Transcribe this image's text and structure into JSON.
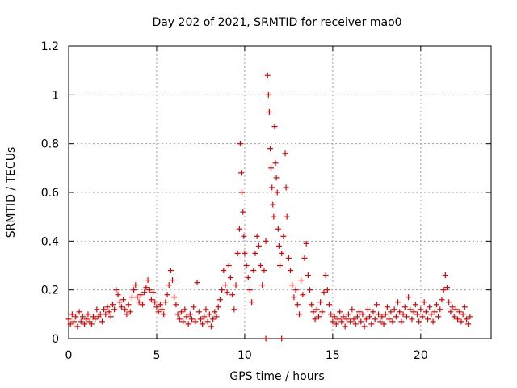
{
  "chart_data": {
    "type": "scatter",
    "title": "Day 202 of 2021, SRMTID for receiver mao0",
    "xlabel": "GPS time / hours",
    "ylabel": "SRMTID / TECUs",
    "xlim": [
      0,
      24
    ],
    "ylim": [
      0,
      1.2
    ],
    "xticks": [
      0,
      5,
      10,
      15,
      20
    ],
    "yticks": [
      0,
      0.2,
      0.4,
      0.6,
      0.8,
      1,
      1.2
    ],
    "xtick_labels": [
      "0",
      "5",
      "10",
      "15",
      "20"
    ],
    "ytick_labels": [
      "0",
      "0.2",
      "0.4",
      "0.6",
      "0.8",
      "1",
      "1.2"
    ],
    "grid": true,
    "marker": "+",
    "color": "#e00000",
    "series": [
      {
        "name": "SRMTID",
        "points": [
          [
            0.0,
            0.08
          ],
          [
            0.1,
            0.06
          ],
          [
            0.2,
            0.1
          ],
          [
            0.3,
            0.07
          ],
          [
            0.4,
            0.09
          ],
          [
            0.5,
            0.05
          ],
          [
            0.6,
            0.11
          ],
          [
            0.7,
            0.07
          ],
          [
            0.8,
            0.09
          ],
          [
            0.9,
            0.06
          ],
          [
            1.0,
            0.08
          ],
          [
            1.1,
            0.1
          ],
          [
            1.2,
            0.07
          ],
          [
            1.3,
            0.06
          ],
          [
            1.4,
            0.09
          ],
          [
            1.5,
            0.08
          ],
          [
            1.6,
            0.12
          ],
          [
            1.7,
            0.09
          ],
          [
            1.8,
            0.1
          ],
          [
            1.9,
            0.07
          ],
          [
            2.0,
            0.12
          ],
          [
            2.1,
            0.1
          ],
          [
            2.2,
            0.13
          ],
          [
            2.3,
            0.11
          ],
          [
            2.4,
            0.09
          ],
          [
            2.5,
            0.14
          ],
          [
            2.6,
            0.12
          ],
          [
            2.7,
            0.2
          ],
          [
            2.8,
            0.18
          ],
          [
            2.9,
            0.15
          ],
          [
            3.0,
            0.13
          ],
          [
            3.1,
            0.16
          ],
          [
            3.2,
            0.12
          ],
          [
            3.3,
            0.1
          ],
          [
            3.4,
            0.14
          ],
          [
            3.5,
            0.11
          ],
          [
            3.6,
            0.17
          ],
          [
            3.7,
            0.2
          ],
          [
            3.8,
            0.22
          ],
          [
            3.9,
            0.17
          ],
          [
            4.0,
            0.15
          ],
          [
            4.1,
            0.18
          ],
          [
            4.2,
            0.14
          ],
          [
            4.3,
            0.19
          ],
          [
            4.4,
            0.21
          ],
          [
            4.5,
            0.24
          ],
          [
            4.6,
            0.2
          ],
          [
            4.7,
            0.16
          ],
          [
            4.8,
            0.19
          ],
          [
            4.9,
            0.15
          ],
          [
            5.0,
            0.13
          ],
          [
            5.1,
            0.11
          ],
          [
            5.2,
            0.14
          ],
          [
            5.3,
            0.12
          ],
          [
            5.4,
            0.1
          ],
          [
            5.5,
            0.15
          ],
          [
            5.6,
            0.18
          ],
          [
            5.7,
            0.22
          ],
          [
            5.8,
            0.28
          ],
          [
            5.9,
            0.24
          ],
          [
            6.0,
            0.17
          ],
          [
            6.1,
            0.14
          ],
          [
            6.2,
            0.1
          ],
          [
            6.3,
            0.08
          ],
          [
            6.4,
            0.11
          ],
          [
            6.5,
            0.07
          ],
          [
            6.6,
            0.12
          ],
          [
            6.7,
            0.09
          ],
          [
            6.8,
            0.06
          ],
          [
            6.9,
            0.1
          ],
          [
            7.0,
            0.08
          ],
          [
            7.1,
            0.13
          ],
          [
            7.2,
            0.07
          ],
          [
            7.3,
            0.23
          ],
          [
            7.4,
            0.11
          ],
          [
            7.5,
            0.08
          ],
          [
            7.6,
            0.06
          ],
          [
            7.7,
            0.09
          ],
          [
            7.8,
            0.12
          ],
          [
            7.9,
            0.07
          ],
          [
            8.0,
            0.1
          ],
          [
            8.1,
            0.05
          ],
          [
            8.2,
            0.08
          ],
          [
            8.3,
            0.11
          ],
          [
            8.4,
            0.09
          ],
          [
            8.5,
            0.13
          ],
          [
            8.6,
            0.16
          ],
          [
            8.7,
            0.2
          ],
          [
            8.8,
            0.28
          ],
          [
            8.9,
            0.22
          ],
          [
            9.0,
            0.19
          ],
          [
            9.1,
            0.3
          ],
          [
            9.2,
            0.25
          ],
          [
            9.3,
            0.18
          ],
          [
            9.4,
            0.12
          ],
          [
            9.5,
            0.22
          ],
          [
            9.6,
            0.35
          ],
          [
            9.7,
            0.45
          ],
          [
            9.75,
            0.8
          ],
          [
            9.8,
            0.68
          ],
          [
            9.85,
            0.6
          ],
          [
            9.9,
            0.52
          ],
          [
            9.95,
            0.42
          ],
          [
            10.0,
            0.35
          ],
          [
            10.1,
            0.3
          ],
          [
            10.2,
            0.25
          ],
          [
            10.3,
            0.2
          ],
          [
            10.4,
            0.15
          ],
          [
            10.5,
            0.28
          ],
          [
            10.6,
            0.35
          ],
          [
            10.7,
            0.42
          ],
          [
            10.8,
            0.38
          ],
          [
            10.9,
            0.3
          ],
          [
            11.0,
            0.22
          ],
          [
            11.1,
            0.28
          ],
          [
            11.2,
            0.4
          ],
          [
            11.3,
            1.08
          ],
          [
            11.35,
            1.0
          ],
          [
            11.4,
            0.93
          ],
          [
            11.45,
            0.78
          ],
          [
            11.5,
            0.7
          ],
          [
            11.55,
            0.62
          ],
          [
            11.6,
            0.55
          ],
          [
            11.65,
            0.5
          ],
          [
            11.7,
            0.87
          ],
          [
            11.75,
            0.72
          ],
          [
            11.8,
            0.66
          ],
          [
            11.85,
            0.6
          ],
          [
            11.9,
            0.45
          ],
          [
            11.95,
            0.38
          ],
          [
            12.0,
            0.3
          ],
          [
            12.1,
            0.35
          ],
          [
            12.2,
            0.42
          ],
          [
            12.3,
            0.76
          ],
          [
            12.35,
            0.62
          ],
          [
            12.4,
            0.5
          ],
          [
            12.5,
            0.33
          ],
          [
            12.6,
            0.28
          ],
          [
            12.7,
            0.22
          ],
          [
            12.8,
            0.17
          ],
          [
            12.9,
            0.2
          ],
          [
            13.0,
            0.14
          ],
          [
            13.1,
            0.1
          ],
          [
            13.2,
            0.24
          ],
          [
            13.3,
            0.18
          ],
          [
            13.4,
            0.33
          ],
          [
            13.5,
            0.39
          ],
          [
            13.6,
            0.26
          ],
          [
            13.7,
            0.2
          ],
          [
            13.8,
            0.14
          ],
          [
            13.9,
            0.11
          ],
          [
            14.0,
            0.08
          ],
          [
            14.1,
            0.12
          ],
          [
            14.2,
            0.09
          ],
          [
            14.3,
            0.15
          ],
          [
            14.4,
            0.11
          ],
          [
            14.5,
            0.19
          ],
          [
            14.6,
            0.26
          ],
          [
            14.7,
            0.2
          ],
          [
            14.8,
            0.14
          ],
          [
            14.9,
            0.1
          ],
          [
            15.0,
            0.07
          ],
          [
            15.1,
            0.09
          ],
          [
            15.2,
            0.06
          ],
          [
            15.3,
            0.08
          ],
          [
            15.4,
            0.11
          ],
          [
            15.5,
            0.07
          ],
          [
            15.6,
            0.09
          ],
          [
            15.7,
            0.05
          ],
          [
            15.8,
            0.08
          ],
          [
            15.9,
            0.1
          ],
          [
            16.0,
            0.07
          ],
          [
            16.1,
            0.12
          ],
          [
            16.2,
            0.08
          ],
          [
            16.3,
            0.06
          ],
          [
            16.4,
            0.09
          ],
          [
            16.5,
            0.11
          ],
          [
            16.6,
            0.07
          ],
          [
            16.7,
            0.1
          ],
          [
            16.8,
            0.05
          ],
          [
            16.9,
            0.08
          ],
          [
            17.0,
            0.12
          ],
          [
            17.1,
            0.09
          ],
          [
            17.2,
            0.06
          ],
          [
            17.3,
            0.11
          ],
          [
            17.4,
            0.08
          ],
          [
            17.5,
            0.14
          ],
          [
            17.6,
            0.1
          ],
          [
            17.7,
            0.07
          ],
          [
            17.8,
            0.09
          ],
          [
            17.9,
            0.06
          ],
          [
            18.0,
            0.1
          ],
          [
            18.1,
            0.13
          ],
          [
            18.2,
            0.08
          ],
          [
            18.3,
            0.11
          ],
          [
            18.4,
            0.07
          ],
          [
            18.5,
            0.12
          ],
          [
            18.6,
            0.09
          ],
          [
            18.7,
            0.15
          ],
          [
            18.8,
            0.11
          ],
          [
            18.9,
            0.07
          ],
          [
            19.0,
            0.1
          ],
          [
            19.1,
            0.13
          ],
          [
            19.2,
            0.09
          ],
          [
            19.3,
            0.17
          ],
          [
            19.4,
            0.12
          ],
          [
            19.5,
            0.08
          ],
          [
            19.6,
            0.11
          ],
          [
            19.7,
            0.14
          ],
          [
            19.8,
            0.1
          ],
          [
            19.9,
            0.07
          ],
          [
            20.0,
            0.12
          ],
          [
            20.1,
            0.09
          ],
          [
            20.2,
            0.15
          ],
          [
            20.3,
            0.11
          ],
          [
            20.4,
            0.08
          ],
          [
            20.5,
            0.13
          ],
          [
            20.6,
            0.1
          ],
          [
            20.7,
            0.07
          ],
          [
            20.8,
            0.11
          ],
          [
            20.9,
            0.14
          ],
          [
            21.0,
            0.09
          ],
          [
            21.1,
            0.12
          ],
          [
            21.2,
            0.16
          ],
          [
            21.3,
            0.2
          ],
          [
            21.4,
            0.26
          ],
          [
            21.5,
            0.21
          ],
          [
            21.6,
            0.15
          ],
          [
            21.7,
            0.11
          ],
          [
            21.8,
            0.13
          ],
          [
            21.9,
            0.09
          ],
          [
            22.0,
            0.12
          ],
          [
            22.1,
            0.08
          ],
          [
            22.2,
            0.11
          ],
          [
            22.3,
            0.07
          ],
          [
            22.4,
            0.1
          ],
          [
            22.5,
            0.13
          ],
          [
            22.6,
            0.08
          ],
          [
            22.7,
            0.06
          ],
          [
            22.8,
            0.09
          ],
          [
            11.2,
            0.0
          ],
          [
            12.1,
            0.0
          ]
        ]
      }
    ]
  }
}
